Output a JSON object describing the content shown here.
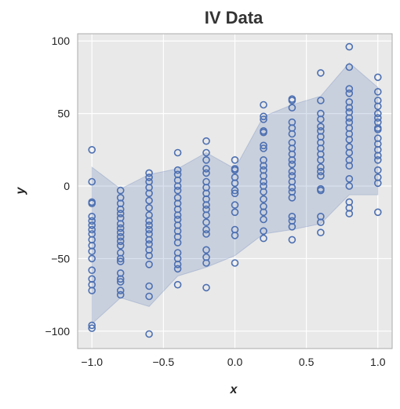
{
  "chart_data": {
    "type": "scatter",
    "title": "IV Data",
    "xlabel": "x",
    "ylabel": "y",
    "xlim": [
      -1.1,
      1.1
    ],
    "ylim": [
      -112,
      105
    ],
    "xticks": [
      -1.0,
      -0.5,
      0.0,
      0.5,
      1.0
    ],
    "xtick_labels": [
      "−1.0",
      "−0.5",
      "0.0",
      "0.5",
      "1.0"
    ],
    "yticks": [
      -100,
      -50,
      0,
      50,
      100
    ],
    "ytick_labels": [
      "−100",
      "−50",
      "0",
      "50",
      "100"
    ],
    "grid": true,
    "colors": {
      "points": "#4c6fb1",
      "band": "#4c6fb1",
      "background": "#e9e9e9",
      "grid": "#ffffff",
      "frame": "#aaaaaa"
    },
    "band": {
      "x": [
        -1.0,
        -0.8,
        -0.6,
        -0.4,
        -0.2,
        0.0,
        0.2,
        0.4,
        0.6,
        0.8,
        1.0
      ],
      "upper": [
        13,
        -2,
        8,
        12,
        23,
        12,
        48,
        56,
        62,
        85,
        68
      ],
      "lower": [
        -95,
        -77,
        -83,
        -62,
        -56,
        -48,
        -33,
        -30,
        -26,
        -6,
        -6
      ]
    },
    "series": [
      {
        "points": [
          [
            -1.0,
            25
          ],
          [
            -1.0,
            3
          ],
          [
            -1.0,
            -11
          ],
          [
            -1.0,
            -12
          ],
          [
            -1.0,
            -21
          ],
          [
            -1.0,
            -24
          ],
          [
            -1.0,
            -27
          ],
          [
            -1.0,
            -30
          ],
          [
            -1.0,
            -33
          ],
          [
            -1.0,
            -37
          ],
          [
            -1.0,
            -41
          ],
          [
            -1.0,
            -45
          ],
          [
            -1.0,
            -50
          ],
          [
            -1.0,
            -58
          ],
          [
            -1.0,
            -64
          ],
          [
            -1.0,
            -68
          ],
          [
            -1.0,
            -72
          ],
          [
            -1.0,
            -96
          ],
          [
            -1.0,
            -98
          ],
          [
            -0.8,
            -3
          ],
          [
            -0.8,
            -8
          ],
          [
            -0.8,
            -12
          ],
          [
            -0.8,
            -16
          ],
          [
            -0.8,
            -19
          ],
          [
            -0.8,
            -22
          ],
          [
            -0.8,
            -26
          ],
          [
            -0.8,
            -29
          ],
          [
            -0.8,
            -32
          ],
          [
            -0.8,
            -35
          ],
          [
            -0.8,
            -38
          ],
          [
            -0.8,
            -41
          ],
          [
            -0.8,
            -46
          ],
          [
            -0.8,
            -50
          ],
          [
            -0.8,
            -52
          ],
          [
            -0.8,
            -60
          ],
          [
            -0.8,
            -64
          ],
          [
            -0.8,
            -66
          ],
          [
            -0.8,
            -72
          ],
          [
            -0.8,
            -75
          ],
          [
            -0.6,
            9
          ],
          [
            -0.6,
            6
          ],
          [
            -0.6,
            3
          ],
          [
            -0.6,
            -1
          ],
          [
            -0.6,
            -5
          ],
          [
            -0.6,
            -10
          ],
          [
            -0.6,
            -15
          ],
          [
            -0.6,
            -20
          ],
          [
            -0.6,
            -24
          ],
          [
            -0.6,
            -27
          ],
          [
            -0.6,
            -30
          ],
          [
            -0.6,
            -33
          ],
          [
            -0.6,
            -37
          ],
          [
            -0.6,
            -40
          ],
          [
            -0.6,
            -44
          ],
          [
            -0.6,
            -48
          ],
          [
            -0.6,
            -54
          ],
          [
            -0.6,
            -69
          ],
          [
            -0.6,
            -76
          ],
          [
            -0.6,
            -102
          ],
          [
            -0.4,
            23
          ],
          [
            -0.4,
            11
          ],
          [
            -0.4,
            8
          ],
          [
            -0.4,
            4
          ],
          [
            -0.4,
            0
          ],
          [
            -0.4,
            -3
          ],
          [
            -0.4,
            -8
          ],
          [
            -0.4,
            -12
          ],
          [
            -0.4,
            -16
          ],
          [
            -0.4,
            -20
          ],
          [
            -0.4,
            -23
          ],
          [
            -0.4,
            -27
          ],
          [
            -0.4,
            -31
          ],
          [
            -0.4,
            -35
          ],
          [
            -0.4,
            -39
          ],
          [
            -0.4,
            -46
          ],
          [
            -0.4,
            -50
          ],
          [
            -0.4,
            -54
          ],
          [
            -0.4,
            -57
          ],
          [
            -0.4,
            -68
          ],
          [
            -0.2,
            31
          ],
          [
            -0.2,
            23
          ],
          [
            -0.2,
            18
          ],
          [
            -0.2,
            12
          ],
          [
            -0.2,
            9
          ],
          [
            -0.2,
            3
          ],
          [
            -0.2,
            -1
          ],
          [
            -0.2,
            -5
          ],
          [
            -0.2,
            -9
          ],
          [
            -0.2,
            -13
          ],
          [
            -0.2,
            -16
          ],
          [
            -0.2,
            -20
          ],
          [
            -0.2,
            -25
          ],
          [
            -0.2,
            -30
          ],
          [
            -0.2,
            -33
          ],
          [
            -0.2,
            -44
          ],
          [
            -0.2,
            -49
          ],
          [
            -0.2,
            -53
          ],
          [
            -0.2,
            -70
          ],
          [
            0.0,
            18
          ],
          [
            0.0,
            12
          ],
          [
            0.0,
            11
          ],
          [
            0.0,
            6
          ],
          [
            0.0,
            2
          ],
          [
            0.0,
            -3
          ],
          [
            0.0,
            -5
          ],
          [
            0.0,
            -13
          ],
          [
            0.0,
            -18
          ],
          [
            0.0,
            -30
          ],
          [
            0.0,
            -34
          ],
          [
            0.0,
            -53
          ],
          [
            0.2,
            56
          ],
          [
            0.2,
            48
          ],
          [
            0.2,
            46
          ],
          [
            0.2,
            38
          ],
          [
            0.2,
            37
          ],
          [
            0.2,
            28
          ],
          [
            0.2,
            26
          ],
          [
            0.2,
            18
          ],
          [
            0.2,
            14
          ],
          [
            0.2,
            11
          ],
          [
            0.2,
            7
          ],
          [
            0.2,
            3
          ],
          [
            0.2,
            0
          ],
          [
            0.2,
            -4
          ],
          [
            0.2,
            -9
          ],
          [
            0.2,
            -14
          ],
          [
            0.2,
            -18
          ],
          [
            0.2,
            -23
          ],
          [
            0.2,
            -31
          ],
          [
            0.2,
            -36
          ],
          [
            0.4,
            60
          ],
          [
            0.4,
            59
          ],
          [
            0.4,
            54
          ],
          [
            0.4,
            44
          ],
          [
            0.4,
            40
          ],
          [
            0.4,
            36
          ],
          [
            0.4,
            30
          ],
          [
            0.4,
            26
          ],
          [
            0.4,
            22
          ],
          [
            0.4,
            18
          ],
          [
            0.4,
            15
          ],
          [
            0.4,
            10
          ],
          [
            0.4,
            7
          ],
          [
            0.4,
            3
          ],
          [
            0.4,
            -1
          ],
          [
            0.4,
            -4
          ],
          [
            0.4,
            -8
          ],
          [
            0.4,
            -21
          ],
          [
            0.4,
            -24
          ],
          [
            0.4,
            -28
          ],
          [
            0.4,
            -37
          ],
          [
            0.6,
            78
          ],
          [
            0.6,
            59
          ],
          [
            0.6,
            50
          ],
          [
            0.6,
            46
          ],
          [
            0.6,
            41
          ],
          [
            0.6,
            38
          ],
          [
            0.6,
            34
          ],
          [
            0.6,
            30
          ],
          [
            0.6,
            26
          ],
          [
            0.6,
            22
          ],
          [
            0.6,
            18
          ],
          [
            0.6,
            13
          ],
          [
            0.6,
            10
          ],
          [
            0.6,
            7
          ],
          [
            0.6,
            -2
          ],
          [
            0.6,
            -3
          ],
          [
            0.6,
            -21
          ],
          [
            0.6,
            -25
          ],
          [
            0.6,
            -32
          ],
          [
            0.8,
            96
          ],
          [
            0.8,
            82
          ],
          [
            0.8,
            67
          ],
          [
            0.8,
            64
          ],
          [
            0.8,
            58
          ],
          [
            0.8,
            54
          ],
          [
            0.8,
            51
          ],
          [
            0.8,
            47
          ],
          [
            0.8,
            44
          ],
          [
            0.8,
            40
          ],
          [
            0.8,
            36
          ],
          [
            0.8,
            32
          ],
          [
            0.8,
            27
          ],
          [
            0.8,
            23
          ],
          [
            0.8,
            18
          ],
          [
            0.8,
            14
          ],
          [
            0.8,
            5
          ],
          [
            0.8,
            0
          ],
          [
            0.8,
            -11
          ],
          [
            0.8,
            -15
          ],
          [
            0.8,
            -19
          ],
          [
            1.0,
            75
          ],
          [
            1.0,
            65
          ],
          [
            1.0,
            59
          ],
          [
            1.0,
            55
          ],
          [
            1.0,
            50
          ],
          [
            1.0,
            47
          ],
          [
            1.0,
            44
          ],
          [
            1.0,
            40
          ],
          [
            1.0,
            39
          ],
          [
            1.0,
            33
          ],
          [
            1.0,
            29
          ],
          [
            1.0,
            25
          ],
          [
            1.0,
            21
          ],
          [
            1.0,
            18
          ],
          [
            1.0,
            11
          ],
          [
            1.0,
            6
          ],
          [
            1.0,
            2
          ],
          [
            1.0,
            -18
          ]
        ]
      }
    ]
  }
}
